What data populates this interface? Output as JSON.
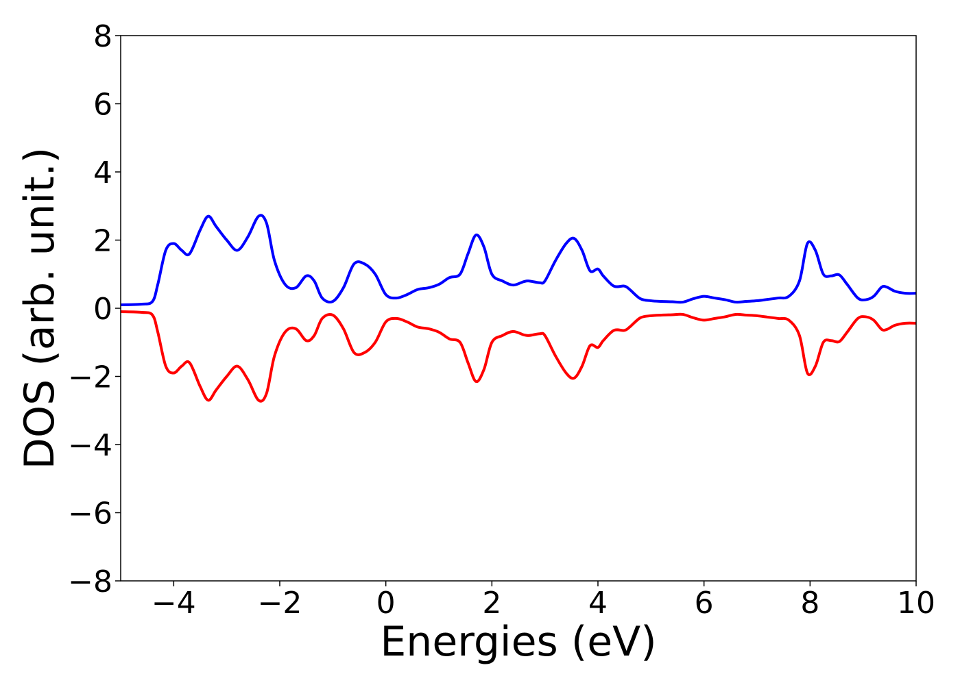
{
  "chart_data": {
    "type": "line",
    "title": "",
    "xlabel": "Energies (eV)",
    "ylabel": "DOS (arb. unit.)",
    "xlim": [
      -5,
      10
    ],
    "ylim": [
      -8,
      8
    ],
    "x_ticks": [
      -4,
      -2,
      0,
      2,
      4,
      6,
      8,
      10
    ],
    "y_ticks": [
      -8,
      -6,
      -4,
      -2,
      0,
      2,
      4,
      6,
      8
    ],
    "x_tick_labels": [
      "−4",
      "−2",
      "0",
      "2",
      "4",
      "6",
      "8",
      "10"
    ],
    "y_tick_labels": [
      "−8",
      "−6",
      "−4",
      "−2",
      "0",
      "2",
      "4",
      "6",
      "8"
    ],
    "grid": false,
    "legend": "none",
    "series": [
      {
        "color": "#0000ff",
        "x": [
          -5,
          -4.6,
          -4.4,
          -4.3,
          -4.15,
          -4.0,
          -3.85,
          -3.7,
          -3.5,
          -3.35,
          -3.2,
          -3.0,
          -2.8,
          -2.6,
          -2.4,
          -2.25,
          -2.1,
          -1.9,
          -1.7,
          -1.5,
          -1.35,
          -1.2,
          -1.0,
          -0.8,
          -0.6,
          -0.4,
          -0.2,
          0.0,
          0.2,
          0.4,
          0.6,
          0.8,
          1.0,
          1.2,
          1.4,
          1.55,
          1.7,
          1.85,
          2.0,
          2.2,
          2.4,
          2.6,
          2.7,
          2.9,
          3.0,
          3.2,
          3.4,
          3.55,
          3.7,
          3.85,
          4.0,
          4.1,
          4.3,
          4.5,
          4.6,
          4.8,
          5.0,
          5.2,
          5.4,
          5.6,
          5.8,
          6.0,
          6.2,
          6.4,
          6.6,
          6.8,
          7.0,
          7.2,
          7.4,
          7.6,
          7.8,
          7.95,
          8.1,
          8.25,
          8.4,
          8.55,
          8.7,
          8.9,
          9.05,
          9.2,
          9.35,
          9.45,
          9.6,
          9.8,
          10.0
        ],
        "y": [
          0.1,
          0.12,
          0.2,
          0.7,
          1.7,
          1.9,
          1.7,
          1.6,
          2.3,
          2.7,
          2.4,
          2.0,
          1.7,
          2.1,
          2.7,
          2.5,
          1.4,
          0.7,
          0.6,
          0.95,
          0.8,
          0.3,
          0.2,
          0.6,
          1.3,
          1.3,
          1.0,
          0.4,
          0.3,
          0.4,
          0.55,
          0.6,
          0.7,
          0.9,
          1.0,
          1.6,
          2.15,
          1.8,
          1.0,
          0.8,
          0.68,
          0.78,
          0.8,
          0.75,
          0.8,
          1.4,
          1.9,
          2.05,
          1.7,
          1.1,
          1.15,
          0.95,
          0.65,
          0.65,
          0.55,
          0.28,
          0.22,
          0.2,
          0.19,
          0.18,
          0.28,
          0.35,
          0.3,
          0.25,
          0.18,
          0.2,
          0.22,
          0.26,
          0.3,
          0.35,
          0.8,
          1.9,
          1.7,
          1.0,
          0.95,
          0.98,
          0.7,
          0.3,
          0.25,
          0.35,
          0.62,
          0.62,
          0.5,
          0.44,
          0.44
        ]
      },
      {
        "color": "#ff0000",
        "x": [
          -5,
          -4.6,
          -4.4,
          -4.3,
          -4.15,
          -4.0,
          -3.85,
          -3.7,
          -3.5,
          -3.35,
          -3.2,
          -3.0,
          -2.8,
          -2.6,
          -2.4,
          -2.25,
          -2.1,
          -1.9,
          -1.7,
          -1.5,
          -1.35,
          -1.2,
          -1.0,
          -0.8,
          -0.6,
          -0.4,
          -0.2,
          0.0,
          0.2,
          0.4,
          0.6,
          0.8,
          1.0,
          1.2,
          1.4,
          1.55,
          1.7,
          1.85,
          2.0,
          2.2,
          2.4,
          2.6,
          2.7,
          2.9,
          3.0,
          3.2,
          3.4,
          3.55,
          3.7,
          3.85,
          4.0,
          4.1,
          4.3,
          4.5,
          4.6,
          4.8,
          5.0,
          5.2,
          5.4,
          5.6,
          5.8,
          6.0,
          6.2,
          6.4,
          6.6,
          6.8,
          7.0,
          7.2,
          7.4,
          7.6,
          7.8,
          7.95,
          8.1,
          8.25,
          8.4,
          8.55,
          8.7,
          8.9,
          9.05,
          9.2,
          9.35,
          9.45,
          9.6,
          9.8,
          10.0
        ],
        "y": [
          -0.1,
          -0.12,
          -0.2,
          -0.7,
          -1.7,
          -1.9,
          -1.7,
          -1.6,
          -2.3,
          -2.7,
          -2.4,
          -2.0,
          -1.7,
          -2.1,
          -2.7,
          -2.5,
          -1.4,
          -0.7,
          -0.6,
          -0.95,
          -0.8,
          -0.3,
          -0.2,
          -0.6,
          -1.3,
          -1.3,
          -1.0,
          -0.4,
          -0.3,
          -0.4,
          -0.55,
          -0.6,
          -0.7,
          -0.9,
          -1.0,
          -1.6,
          -2.15,
          -1.8,
          -1.0,
          -0.8,
          -0.68,
          -0.78,
          -0.8,
          -0.75,
          -0.8,
          -1.4,
          -1.9,
          -2.05,
          -1.7,
          -1.1,
          -1.15,
          -0.95,
          -0.65,
          -0.65,
          -0.55,
          -0.28,
          -0.22,
          -0.2,
          -0.19,
          -0.18,
          -0.28,
          -0.35,
          -0.3,
          -0.25,
          -0.18,
          -0.2,
          -0.22,
          -0.26,
          -0.3,
          -0.35,
          -0.8,
          -1.9,
          -1.7,
          -1.0,
          -0.95,
          -0.98,
          -0.7,
          -0.3,
          -0.25,
          -0.35,
          -0.62,
          -0.62,
          -0.5,
          -0.44,
          -0.44
        ]
      }
    ]
  }
}
